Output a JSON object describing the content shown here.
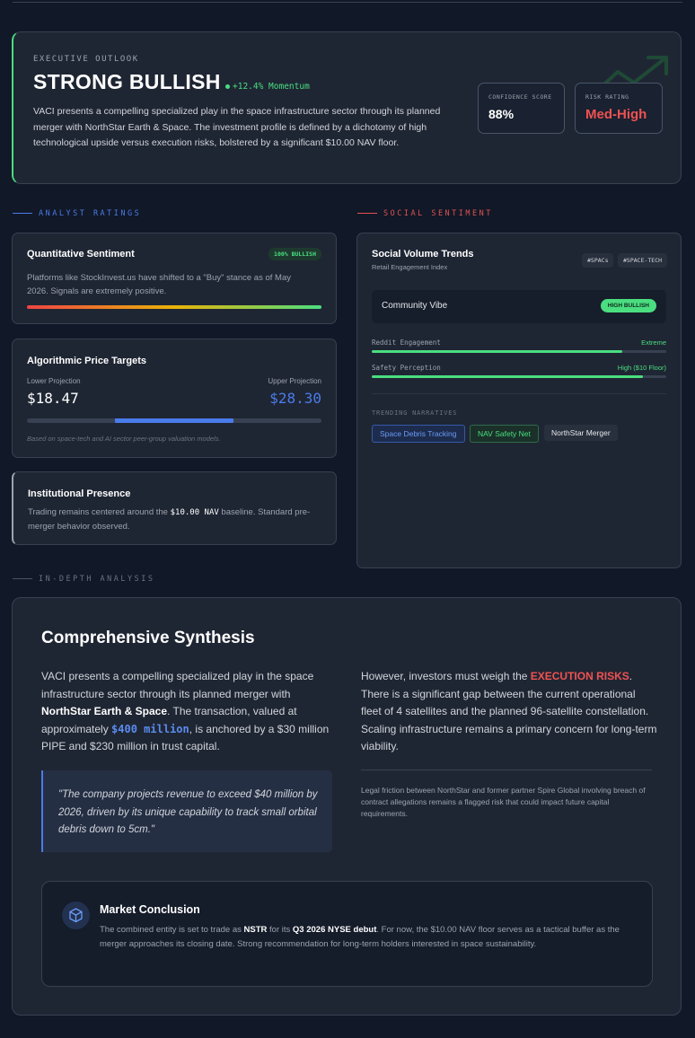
{
  "executive": {
    "kicker": "EXECUTIVE OUTLOOK",
    "title": "STRONG BULLISH",
    "momentum": "+12.4% Momentum",
    "summary": "VACI presents a compelling specialized play in the space infrastructure sector through its planned merger with NorthStar Earth & Space. The investment profile is defined by a dichotomy of high technological upside versus execution risks, bolstered by a significant $10.00 NAV floor.",
    "confidence_label": "CONFIDENCE SCORE",
    "confidence_value": "88%",
    "risk_label": "RISK RATING",
    "risk_value": "Med-High",
    "colors": {
      "bull": "#4ade80",
      "risk": "#f05252"
    }
  },
  "sections": {
    "analyst": "ANALYST RATINGS",
    "social": "SOCIAL SENTIMENT",
    "indepth": "IN-DEPTH ANALYSIS"
  },
  "quant": {
    "title": "Quantitative Sentiment",
    "badge": "100% BULLISH",
    "text": "Platforms like StockInvest.us have shifted to a \"Buy\" stance as of May 2026. Signals are extremely positive.",
    "fill": 1.0
  },
  "targets": {
    "title": "Algorithmic Price Targets",
    "lower_label": "Lower Projection",
    "lower_value": "$18.47",
    "upper_label": "Upper Projection",
    "upper_value": "$28.30",
    "range_start": 0.3,
    "range_end": 0.7,
    "note": "Based on space-tech and AI sector peer-group valuation models."
  },
  "institutional": {
    "title": "Institutional Presence",
    "text_a": "Trading remains centered around the ",
    "nav": "$10.00 NAV",
    "text_b": " baseline. Standard pre-merger behavior observed."
  },
  "social": {
    "title": "Social Volume Trends",
    "subtitle": "Retail Engagement Index",
    "tags": [
      "#SPACs",
      "#SPACE-TECH"
    ],
    "vibe_label": "Community Vibe",
    "vibe_value": "HIGH BULLISH",
    "meters": [
      {
        "label": "Reddit Engagement",
        "value": "Extreme",
        "fill": 0.85
      },
      {
        "label": "Safety Perception",
        "value": "High ($10 Floor)",
        "fill": 0.92
      }
    ],
    "narratives_label": "TRENDING NARRATIVES",
    "narratives": [
      "Space Debris Tracking",
      "NAV Safety Net",
      "NorthStar Merger"
    ]
  },
  "synthesis": {
    "title": "Comprehensive Synthesis",
    "left": {
      "a": "VACI presents a compelling specialized play in the space infrastructure sector through its planned merger with ",
      "b": "NorthStar Earth & Space",
      "c": ". The transaction, valued at approximately ",
      "d": "$400 million",
      "e": ", is anchored by a $30 million PIPE and $230 million in trust capital."
    },
    "quote": "\"The company projects revenue to exceed $40 million by 2026, driven by its unique capability to track small orbital debris down to 5cm.\"",
    "right": {
      "a": "However, investors must weigh the ",
      "b": "EXECUTION RISKS",
      "c": ". There is a significant gap between the current operational fleet of 4 satellites and the planned 96-satellite constellation. Scaling infrastructure remains a primary concern for long-term viability."
    },
    "legal": "Legal friction between NorthStar and former partner Spire Global involving breach of contract allegations remains a flagged risk that could impact future capital requirements."
  },
  "conclusion": {
    "title": "Market Conclusion",
    "a": "The combined entity is set to trade as ",
    "ticker": "NSTR",
    "b": " for its ",
    "debut": "Q3 2026 NYSE debut",
    "c": ". For now, the $10.00 NAV floor serves as a tactical buffer as the merger approaches its closing date. Strong recommendation for long-term holders interested in space sustainability.",
    "icon": "cube-icon"
  }
}
